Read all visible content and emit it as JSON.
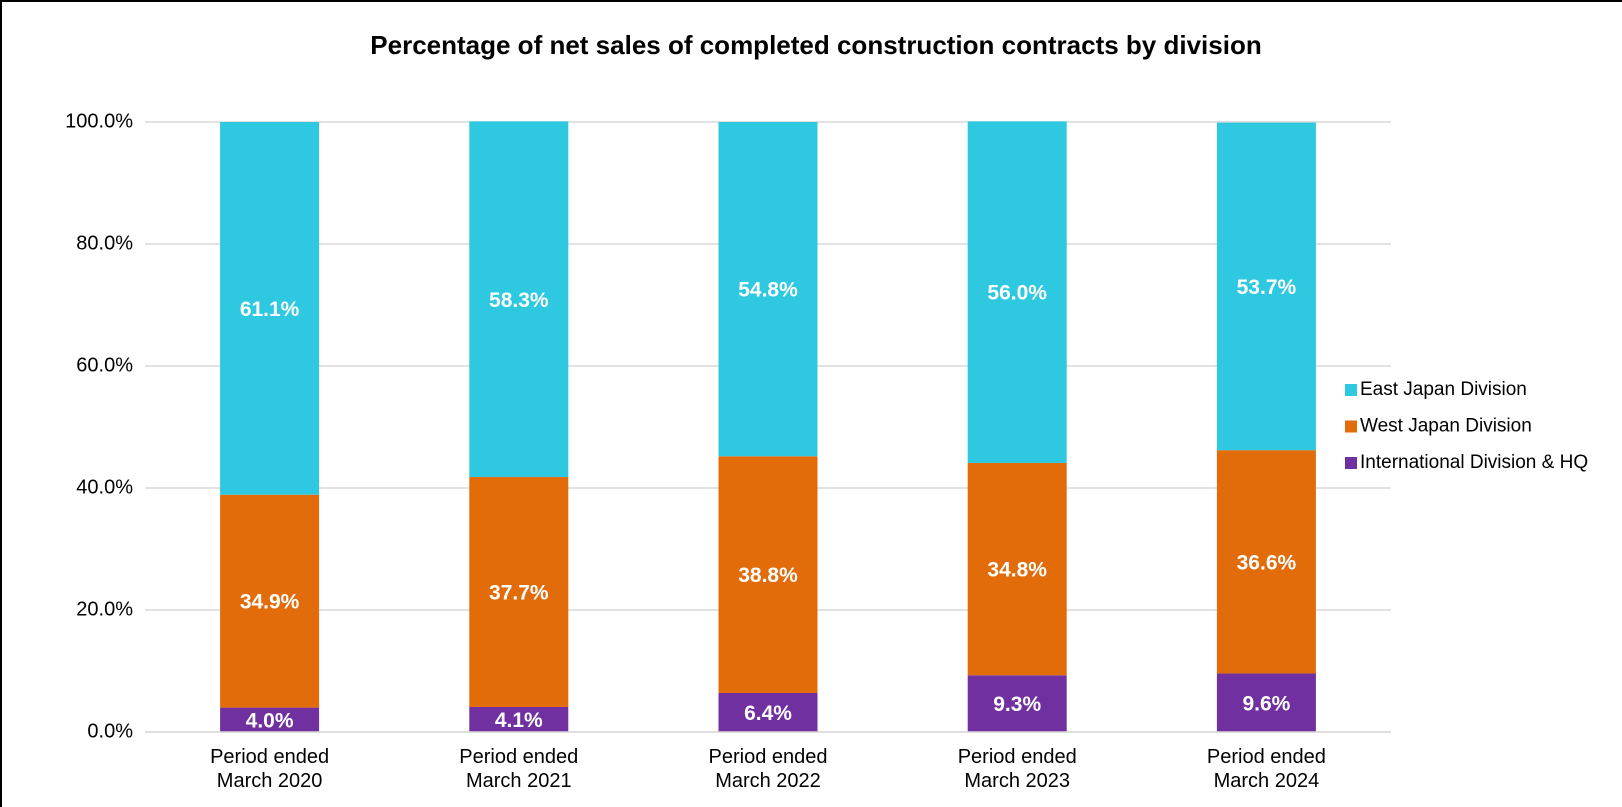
{
  "chart_data": {
    "type": "stacked_bar",
    "title": "Percentage of net sales of completed construction contracts by division",
    "categories": [
      "Period ended\nMarch 2020",
      "Period ended\nMarch 2021",
      "Period ended\nMarch 2022",
      "Period ended\nMarch 2023",
      "Period ended\nMarch 2024"
    ],
    "series": [
      {
        "name": "International Division & HQ",
        "color": "#7030a0",
        "values": [
          4.0,
          4.1,
          6.4,
          9.3,
          9.6
        ],
        "value_labels": [
          "4.0%",
          "4.1%",
          "6.4%",
          "9.3%",
          "9.6%"
        ]
      },
      {
        "name": "West Japan Division",
        "color": "#e36c0a",
        "values": [
          34.9,
          37.7,
          38.8,
          34.8,
          36.6
        ],
        "value_labels": [
          "34.9%",
          "37.7%",
          "38.8%",
          "34.8%",
          "36.6%"
        ]
      },
      {
        "name": "East Japan Division",
        "color": "#2ec8e0",
        "values": [
          61.1,
          58.3,
          54.8,
          56.0,
          53.7
        ],
        "value_labels": [
          "61.1%",
          "58.3%",
          "54.8%",
          "56.0%",
          "53.7%"
        ]
      }
    ],
    "ylim": [
      0,
      100
    ],
    "yticks": [
      {
        "value": 0,
        "label": "0.0%"
      },
      {
        "value": 20,
        "label": "20.0%"
      },
      {
        "value": 40,
        "label": "40.0%"
      },
      {
        "value": 60,
        "label": "60.0%"
      },
      {
        "value": 80,
        "label": "80.0%"
      },
      {
        "value": 100,
        "label": "100.0%"
      }
    ],
    "grid": true,
    "legend": "right"
  }
}
